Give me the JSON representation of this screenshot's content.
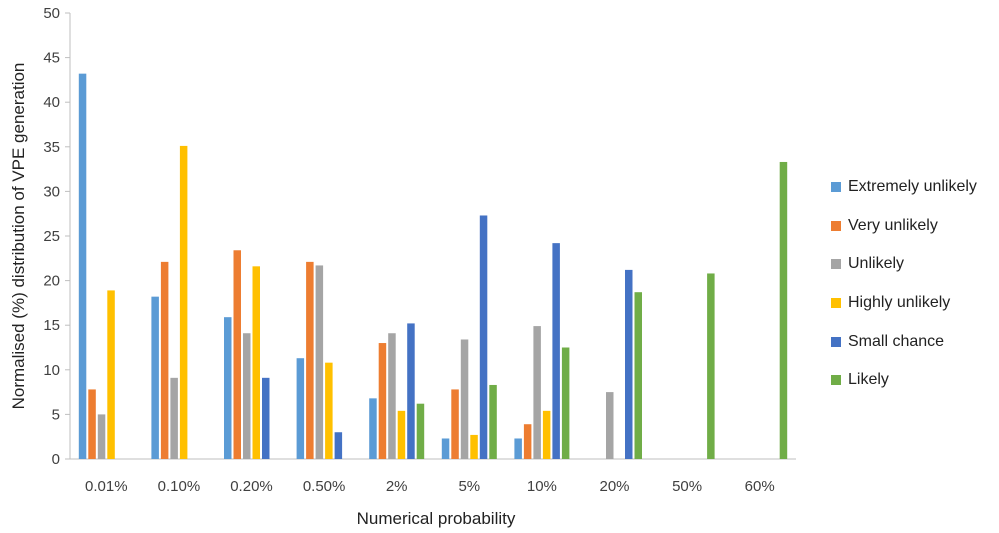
{
  "chart_data": {
    "type": "bar",
    "title": "",
    "xlabel": "Numerical probability",
    "ylabel": "Normalised (%) distribution of VPE generation",
    "ylim": [
      0,
      50
    ],
    "yticks": [
      "0",
      "5",
      "10",
      "15",
      "20",
      "25",
      "30",
      "35",
      "40",
      "45",
      "50"
    ],
    "grid": false,
    "legend_position": "right",
    "categories": [
      "0.01%",
      "0.10%",
      "0.20%",
      "0.50%",
      "2%",
      "5%",
      "10%",
      "20%",
      "50%",
      "60%"
    ],
    "series": [
      {
        "name": "Extremely unlikely",
        "color": "#5B9BD5",
        "values": [
          43.2,
          18.2,
          15.9,
          11.3,
          6.8,
          2.3,
          2.3,
          0,
          0,
          0
        ]
      },
      {
        "name": "Very unlikely",
        "color": "#ED7D31",
        "values": [
          7.8,
          22.1,
          23.4,
          22.1,
          13.0,
          7.8,
          3.9,
          0,
          0,
          0
        ]
      },
      {
        "name": "Unlikely",
        "color": "#A5A5A5",
        "values": [
          5.0,
          9.1,
          14.1,
          21.7,
          14.1,
          13.4,
          14.9,
          7.5,
          0,
          0
        ]
      },
      {
        "name": "Highly unlikely",
        "color": "#FFC000",
        "values": [
          18.9,
          35.1,
          21.6,
          10.8,
          5.4,
          2.7,
          5.4,
          0,
          0,
          0
        ]
      },
      {
        "name": "Small chance",
        "color": "#4472C4",
        "values": [
          0,
          0,
          9.1,
          3.0,
          15.2,
          27.3,
          24.2,
          21.2,
          0,
          0
        ]
      },
      {
        "name": "Likely",
        "color": "#70AD47",
        "values": [
          0,
          0,
          0,
          0,
          6.2,
          8.3,
          12.5,
          18.7,
          20.8,
          33.3
        ]
      }
    ]
  }
}
